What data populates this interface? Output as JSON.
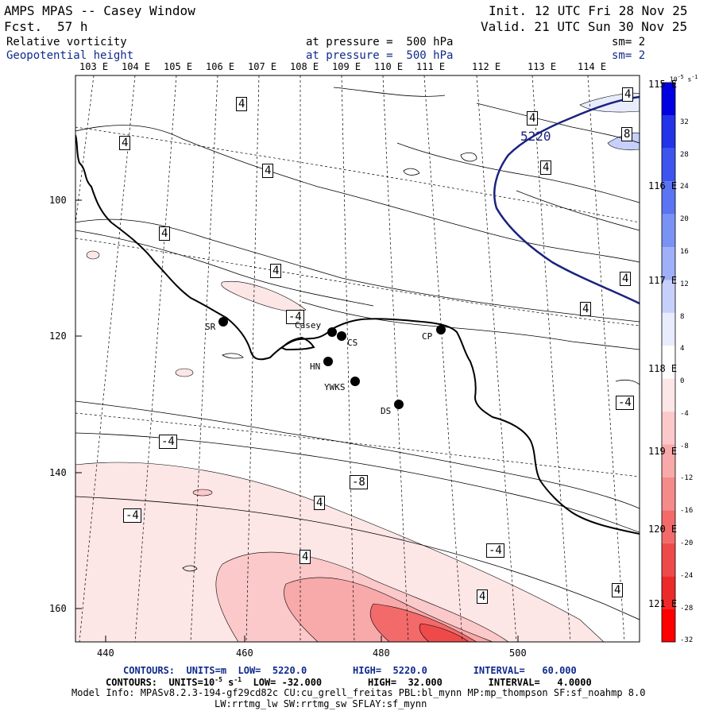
{
  "header": {
    "title": "AMPS MPAS -- Casey Window",
    "fcst_label": "Fcst.",
    "fcst_value": "57 h",
    "init": "Init. 12 UTC Fri 28 Nov 25",
    "valid": "Valid. 21 UTC Sun 30 Nov 25",
    "field1": "Relative vorticity",
    "field1_level": "at pressure =  500 hPa",
    "field1_sm": "sm= 2",
    "field2": "Geopotential height",
    "field2_level": "at pressure =  500 hPa",
    "field2_sm": "sm= 2"
  },
  "lon_labels_top": [
    "103 E",
    "104 E",
    "105 E",
    "106 E",
    "107 E",
    "108 E",
    "109 E",
    "110 E",
    "111 E",
    "112 E",
    "113 E",
    "114 E"
  ],
  "lon_labels_right": [
    "115 E",
    "116 E",
    "117 E",
    "118 E",
    "119 E",
    "120 E",
    "121 E"
  ],
  "grid_x_ticks": [
    "440",
    "460",
    "480",
    "500"
  ],
  "grid_y_ticks": [
    "100",
    "120",
    "140",
    "160"
  ],
  "stations": [
    {
      "name": "SR"
    },
    {
      "name": "Casey"
    },
    {
      "name": "CS"
    },
    {
      "name": "HN"
    },
    {
      "name": "YWKS"
    },
    {
      "name": "DS"
    },
    {
      "name": "CP"
    }
  ],
  "contour_labels_vort": [
    "4",
    "4",
    "4",
    "4",
    "4",
    "4",
    "4",
    "4",
    "8",
    "4",
    "-4",
    "4",
    "-4",
    "-4",
    "-4",
    "4",
    "-8",
    "4",
    "-4",
    "4",
    "4"
  ],
  "height_contour_label": "5220",
  "colorbar": {
    "unit_exp": "-5",
    "unit_tail": "s",
    "unit_tail_exp": "-1",
    "ticks": [
      "32",
      "28",
      "24",
      "20",
      "16",
      "12",
      "8",
      "4",
      "0",
      "-4",
      "-8",
      "-12",
      "-16",
      "-20",
      "-24",
      "-28",
      "-32"
    ],
    "colors": [
      "#0000e0",
      "#2233e8",
      "#3d55ee",
      "#5a74f2",
      "#7b92f5",
      "#9fb0f8",
      "#c6d0fb",
      "#e8ecfd",
      "#ffffff",
      "#fde6e6",
      "#fbc9c9",
      "#f8a9a9",
      "#f58a8a",
      "#f26a6a",
      "#ef4a4a",
      "#ec2a2a",
      "#ff0000"
    ]
  },
  "footer": {
    "contours1": "CONTOURS:  UNITS=m  LOW=  5220.0        HIGH=  5220.0        INTERVAL=   60.000",
    "contours2_pre": "CONTOURS:  UNITS=10",
    "contours2_exp": "-5",
    "contours2_mid": " s",
    "contours2_exp2": "-1",
    "contours2_post": "  LOW= -32.000        HIGH=  32.000        INTERVAL=   4.0000",
    "model_info": "Model Info: MPASv8.2.3-194-gf29cd82c CU:cu_grell_freitas PBL:bl_mynn MP:mp_thompson SF:sf_noahmp 8.0",
    "model_info2": "LW:rrtmg_lw SW:rrtmg_sw SFLAY:sf_mynn"
  }
}
